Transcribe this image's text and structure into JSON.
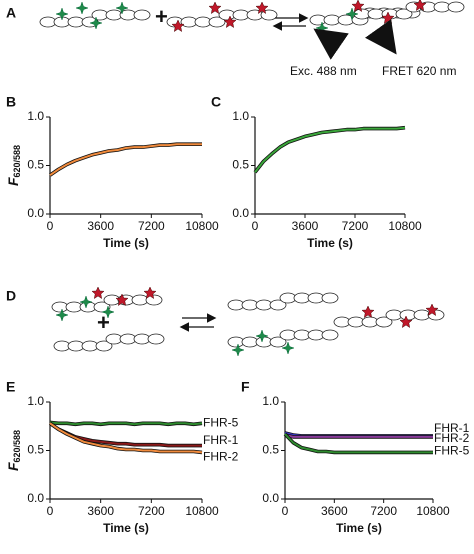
{
  "schematics": {
    "A": {
      "label": "A",
      "excitation": "Exc. 488 nm",
      "emission": "FRET 620 nm",
      "plus": "+"
    },
    "D": {
      "label": "D",
      "plus": "+"
    }
  },
  "chart_data": [
    {
      "type": "line",
      "panel_label": "B",
      "y_label": "F",
      "y_label_sub": "620/588",
      "x_label": "Time (s)",
      "x": [
        0,
        600,
        1200,
        1800,
        2400,
        3000,
        3600,
        4200,
        4800,
        5400,
        6000,
        6600,
        7200,
        7800,
        8400,
        9000,
        9600,
        10200,
        10800
      ],
      "series": [
        {
          "color": "#f08a3c",
          "values": [
            0.4,
            0.46,
            0.51,
            0.55,
            0.58,
            0.61,
            0.63,
            0.65,
            0.66,
            0.68,
            0.69,
            0.69,
            0.7,
            0.71,
            0.71,
            0.72,
            0.72,
            0.72,
            0.72
          ]
        }
      ],
      "xlim": [
        0,
        10800
      ],
      "xticks": [
        0,
        3600,
        7200,
        10800
      ],
      "ylim": [
        0,
        1
      ],
      "yticks": [
        {
          "value": 0,
          "label": "0.0"
        },
        {
          "value": 0.5,
          "label": "0.5"
        },
        {
          "value": 1,
          "label": "1.0"
        }
      ]
    },
    {
      "type": "line",
      "panel_label": "C",
      "x_label": "Time (s)",
      "x": [
        0,
        600,
        1200,
        1800,
        2400,
        3000,
        3600,
        4200,
        4800,
        5400,
        6000,
        6600,
        7200,
        7800,
        8400,
        9000,
        9600,
        10200,
        10800
      ],
      "series": [
        {
          "color": "#3aa63a",
          "values": [
            0.43,
            0.54,
            0.62,
            0.69,
            0.74,
            0.77,
            0.8,
            0.82,
            0.84,
            0.85,
            0.86,
            0.87,
            0.87,
            0.88,
            0.88,
            0.88,
            0.88,
            0.88,
            0.89
          ]
        }
      ],
      "xlim": [
        0,
        10800
      ],
      "xticks": [
        0,
        3600,
        7200,
        10800
      ],
      "ylim": [
        0,
        1
      ],
      "yticks": [
        {
          "value": 0,
          "label": "0.0"
        },
        {
          "value": 0.5,
          "label": "0.5"
        },
        {
          "value": 1,
          "label": "1.0"
        }
      ]
    },
    {
      "type": "line",
      "panel_label": "E",
      "y_label": "F",
      "y_label_sub": "620/588",
      "x_label": "Time (s)",
      "x": [
        0,
        600,
        1200,
        1800,
        2400,
        3000,
        3600,
        4200,
        4800,
        5400,
        6000,
        6600,
        7200,
        7800,
        8400,
        9000,
        9600,
        10200,
        10800
      ],
      "series": [
        {
          "name": "FHR-5",
          "color": "#2e8b2e",
          "values": [
            0.79,
            0.78,
            0.78,
            0.77,
            0.78,
            0.78,
            0.77,
            0.78,
            0.78,
            0.78,
            0.77,
            0.78,
            0.78,
            0.78,
            0.77,
            0.78,
            0.78,
            0.77,
            0.78
          ]
        },
        {
          "name": "FHR-1",
          "color": "#8b1a1a",
          "values": [
            0.78,
            0.72,
            0.68,
            0.64,
            0.62,
            0.6,
            0.59,
            0.58,
            0.57,
            0.57,
            0.56,
            0.56,
            0.56,
            0.56,
            0.55,
            0.55,
            0.55,
            0.55,
            0.55
          ]
        },
        {
          "name": "FHR-2",
          "color": "#f08a3c",
          "values": [
            0.78,
            0.72,
            0.67,
            0.63,
            0.59,
            0.57,
            0.55,
            0.54,
            0.52,
            0.51,
            0.51,
            0.5,
            0.5,
            0.49,
            0.49,
            0.49,
            0.49,
            0.49,
            0.48
          ]
        }
      ],
      "xlim": [
        0,
        10800
      ],
      "xticks": [
        0,
        3600,
        7200,
        10800
      ],
      "ylim": [
        0,
        1
      ],
      "yticks": [
        {
          "value": 0,
          "label": "0.0"
        },
        {
          "value": 0.5,
          "label": "0.5"
        },
        {
          "value": 1,
          "label": "1.0"
        }
      ]
    },
    {
      "type": "line",
      "panel_label": "F",
      "x_label": "Time (s)",
      "x": [
        0,
        600,
        1200,
        1800,
        2400,
        3000,
        3600,
        4200,
        4800,
        5400,
        6000,
        6600,
        7200,
        7800,
        8400,
        9000,
        9600,
        10200,
        10800
      ],
      "series": [
        {
          "name": "FHR-1",
          "color": "#3a3ad6",
          "values": [
            0.68,
            0.66,
            0.65,
            0.65,
            0.65,
            0.65,
            0.65,
            0.65,
            0.65,
            0.65,
            0.65,
            0.65,
            0.65,
            0.65,
            0.65,
            0.65,
            0.65,
            0.65,
            0.65
          ]
        },
        {
          "name": "FHR-2",
          "color": "#8a3a9a",
          "values": [
            0.66,
            0.64,
            0.64,
            0.64,
            0.64,
            0.64,
            0.64,
            0.64,
            0.64,
            0.64,
            0.64,
            0.64,
            0.64,
            0.64,
            0.64,
            0.64,
            0.64,
            0.64,
            0.64
          ]
        },
        {
          "name": "FHR-5",
          "color": "#2e8b2e",
          "values": [
            0.67,
            0.58,
            0.53,
            0.51,
            0.49,
            0.49,
            0.48,
            0.48,
            0.48,
            0.48,
            0.48,
            0.48,
            0.48,
            0.48,
            0.48,
            0.48,
            0.48,
            0.48,
            0.48
          ]
        }
      ],
      "xlim": [
        0,
        10800
      ],
      "xticks": [
        0,
        3600,
        7200,
        10800
      ],
      "ylim": [
        0,
        1
      ],
      "yticks": [
        {
          "value": 0,
          "label": "0.0"
        },
        {
          "value": 0.5,
          "label": "0.5"
        },
        {
          "value": 1,
          "label": "1.0"
        }
      ]
    }
  ]
}
